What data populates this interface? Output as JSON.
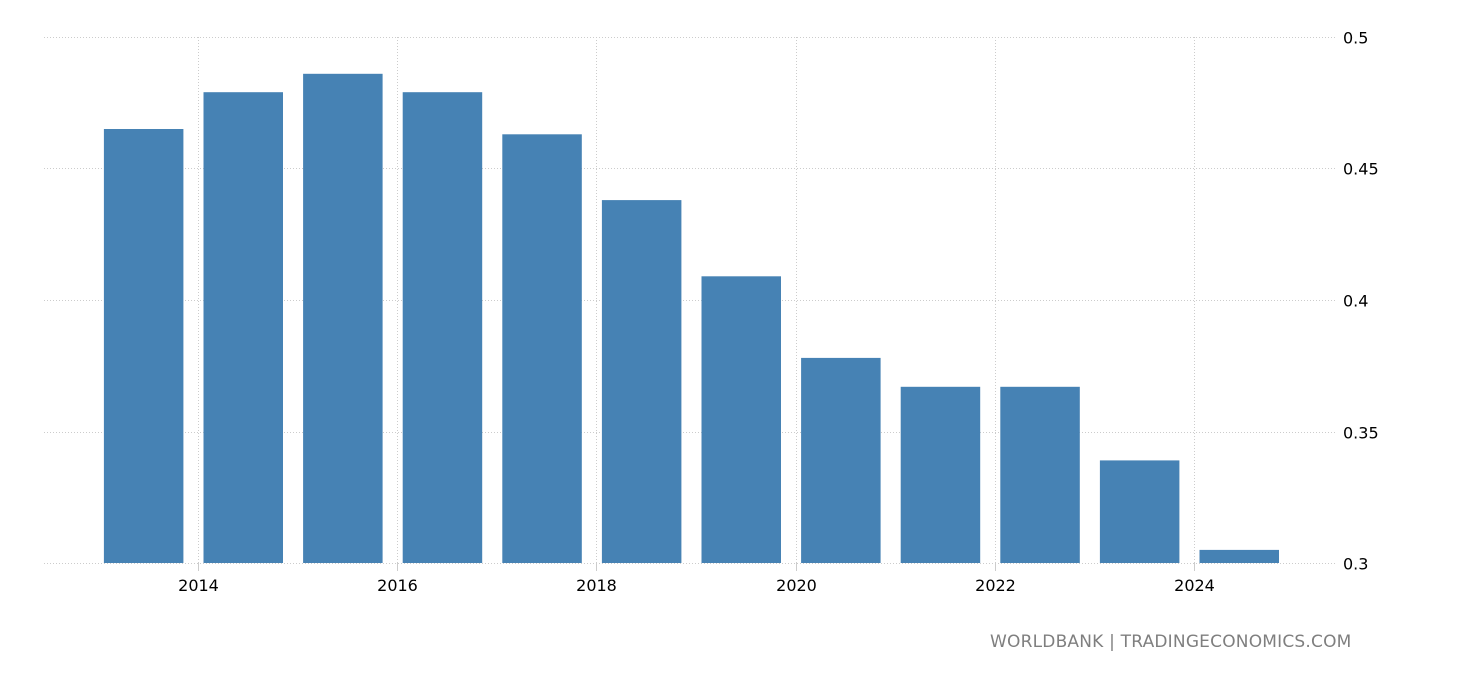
{
  "chart_data": {
    "type": "bar",
    "title": "",
    "xlabel": "",
    "ylabel": "",
    "categories": [
      "2013",
      "2014",
      "2015",
      "2016",
      "2017",
      "2018",
      "2019",
      "2020",
      "2021",
      "2022",
      "2023",
      "2024"
    ],
    "values": [
      0.465,
      0.479,
      0.486,
      0.479,
      0.463,
      0.438,
      0.409,
      0.378,
      0.367,
      0.367,
      0.339,
      0.305
    ],
    "ylim": [
      0.3,
      0.5
    ],
    "yticks": [
      0.3,
      0.35,
      0.4,
      0.45,
      0.5
    ],
    "ytick_labels": [
      "0.3",
      "0.35",
      "0.4",
      "0.45",
      "0.5"
    ],
    "xticks": [
      "2014",
      "2016",
      "2018",
      "2020",
      "2022",
      "2024"
    ],
    "grid": true,
    "legend": null,
    "bar_color": "#4682b4",
    "grid_color": "#cccccc",
    "y_axis_position": "right"
  },
  "footer": {
    "source": "WORLDBANK | TRADINGECONOMICS.COM"
  }
}
